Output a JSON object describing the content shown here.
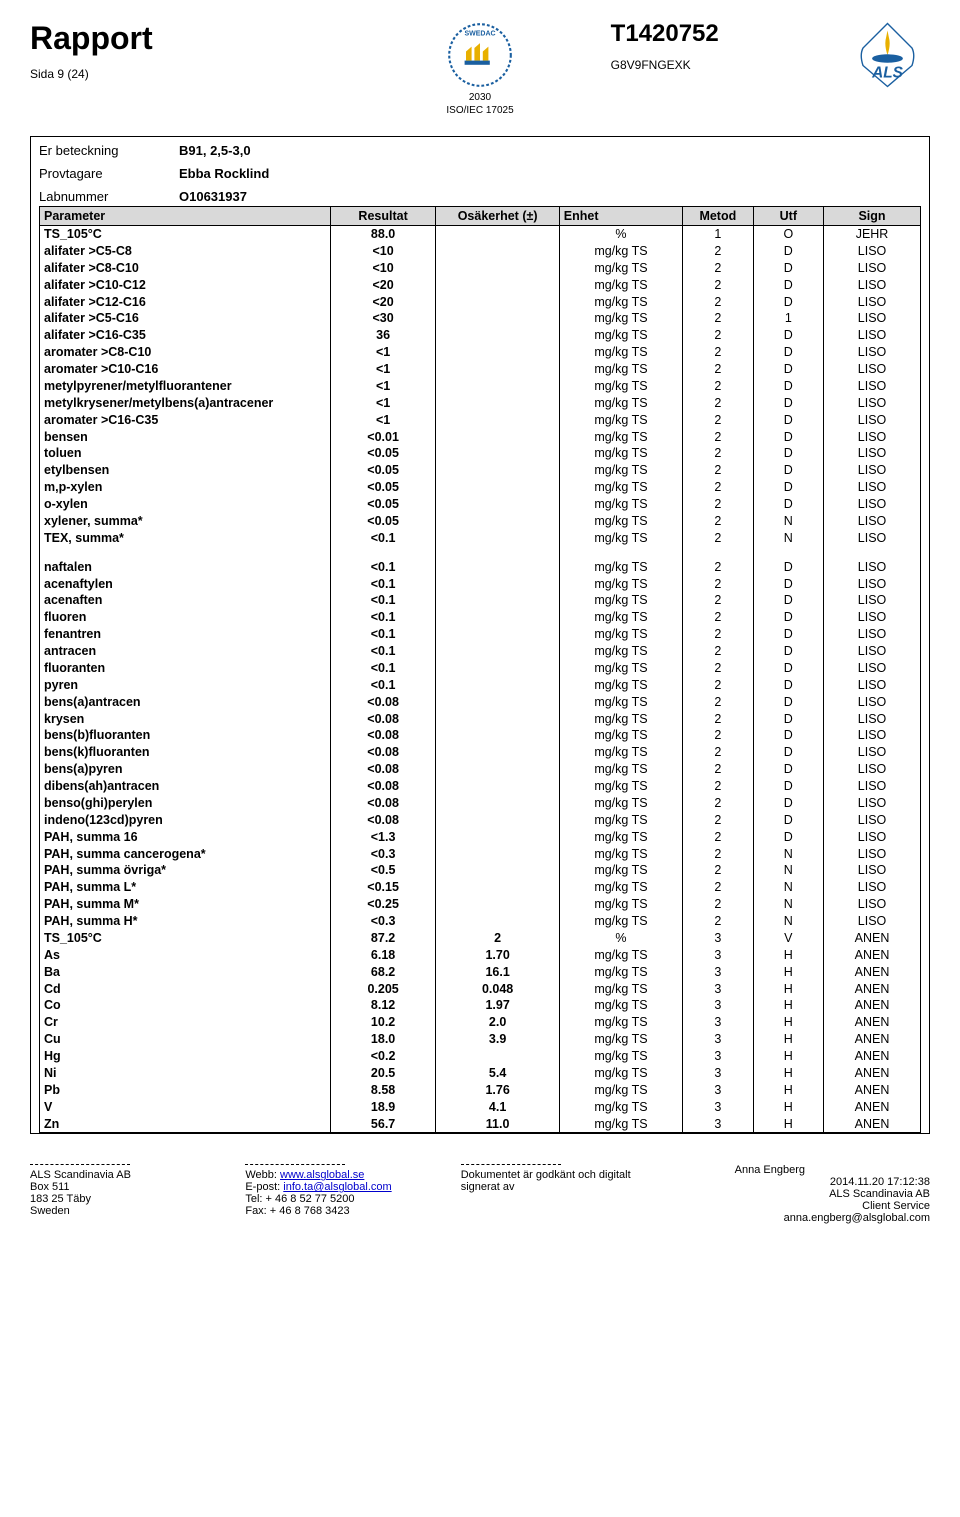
{
  "header": {
    "title": "Rapport",
    "page": "Sida 9 (24)",
    "report_no": "T1420752",
    "sub_no": "G8V9FNGEXK",
    "iso_line1": "2030",
    "iso_line2": "ISO/IEC 17025"
  },
  "meta": {
    "er_label": "Er beteckning",
    "er_value": "B91, 2,5-3,0",
    "prov_label": "Provtagare",
    "prov_value": "Ebba Rocklind",
    "lab_label": "Labnummer",
    "lab_value": "O10631937"
  },
  "columns": [
    "Parameter",
    "Resultat",
    "Osäkerhet (±)",
    "Enhet",
    "Metod",
    "Utf",
    "Sign"
  ],
  "rows": [
    [
      "TS_105°C",
      "88.0",
      "",
      "%",
      "1",
      "O",
      "JEHR"
    ],
    [
      "alifater >C5-C8",
      "<10",
      "",
      "mg/kg TS",
      "2",
      "D",
      "LISO"
    ],
    [
      "alifater >C8-C10",
      "<10",
      "",
      "mg/kg TS",
      "2",
      "D",
      "LISO"
    ],
    [
      "alifater >C10-C12",
      "<20",
      "",
      "mg/kg TS",
      "2",
      "D",
      "LISO"
    ],
    [
      "alifater >C12-C16",
      "<20",
      "",
      "mg/kg TS",
      "2",
      "D",
      "LISO"
    ],
    [
      "alifater >C5-C16",
      "<30",
      "",
      "mg/kg TS",
      "2",
      "1",
      "LISO"
    ],
    [
      "alifater >C16-C35",
      "36",
      "",
      "mg/kg TS",
      "2",
      "D",
      "LISO"
    ],
    [
      "aromater >C8-C10",
      "<1",
      "",
      "mg/kg TS",
      "2",
      "D",
      "LISO"
    ],
    [
      "aromater >C10-C16",
      "<1",
      "",
      "mg/kg TS",
      "2",
      "D",
      "LISO"
    ],
    [
      "metylpyrener/metylfluorantener",
      "<1",
      "",
      "mg/kg TS",
      "2",
      "D",
      "LISO"
    ],
    [
      "metylkrysener/metylbens(a)antracener",
      "<1",
      "",
      "mg/kg TS",
      "2",
      "D",
      "LISO"
    ],
    [
      "aromater >C16-C35",
      "<1",
      "",
      "mg/kg TS",
      "2",
      "D",
      "LISO"
    ],
    [
      "bensen",
      "<0.01",
      "",
      "mg/kg TS",
      "2",
      "D",
      "LISO"
    ],
    [
      "toluen",
      "<0.05",
      "",
      "mg/kg TS",
      "2",
      "D",
      "LISO"
    ],
    [
      "etylbensen",
      "<0.05",
      "",
      "mg/kg TS",
      "2",
      "D",
      "LISO"
    ],
    [
      "m,p-xylen",
      "<0.05",
      "",
      "mg/kg TS",
      "2",
      "D",
      "LISO"
    ],
    [
      "o-xylen",
      "<0.05",
      "",
      "mg/kg TS",
      "2",
      "D",
      "LISO"
    ],
    [
      "xylener, summa*",
      "<0.05",
      "",
      "mg/kg TS",
      "2",
      "N",
      "LISO"
    ],
    [
      "TEX, summa*",
      "<0.1",
      "",
      "mg/kg TS",
      "2",
      "N",
      "LISO"
    ],
    "SPACER",
    [
      "naftalen",
      "<0.1",
      "",
      "mg/kg TS",
      "2",
      "D",
      "LISO"
    ],
    [
      "acenaftylen",
      "<0.1",
      "",
      "mg/kg TS",
      "2",
      "D",
      "LISO"
    ],
    [
      "acenaften",
      "<0.1",
      "",
      "mg/kg TS",
      "2",
      "D",
      "LISO"
    ],
    [
      "fluoren",
      "<0.1",
      "",
      "mg/kg TS",
      "2",
      "D",
      "LISO"
    ],
    [
      "fenantren",
      "<0.1",
      "",
      "mg/kg TS",
      "2",
      "D",
      "LISO"
    ],
    [
      "antracen",
      "<0.1",
      "",
      "mg/kg TS",
      "2",
      "D",
      "LISO"
    ],
    [
      "fluoranten",
      "<0.1",
      "",
      "mg/kg TS",
      "2",
      "D",
      "LISO"
    ],
    [
      "pyren",
      "<0.1",
      "",
      "mg/kg TS",
      "2",
      "D",
      "LISO"
    ],
    [
      "bens(a)antracen",
      "<0.08",
      "",
      "mg/kg TS",
      "2",
      "D",
      "LISO"
    ],
    [
      "krysen",
      "<0.08",
      "",
      "mg/kg TS",
      "2",
      "D",
      "LISO"
    ],
    [
      "bens(b)fluoranten",
      "<0.08",
      "",
      "mg/kg TS",
      "2",
      "D",
      "LISO"
    ],
    [
      "bens(k)fluoranten",
      "<0.08",
      "",
      "mg/kg TS",
      "2",
      "D",
      "LISO"
    ],
    [
      "bens(a)pyren",
      "<0.08",
      "",
      "mg/kg TS",
      "2",
      "D",
      "LISO"
    ],
    [
      "dibens(ah)antracen",
      "<0.08",
      "",
      "mg/kg TS",
      "2",
      "D",
      "LISO"
    ],
    [
      "benso(ghi)perylen",
      "<0.08",
      "",
      "mg/kg TS",
      "2",
      "D",
      "LISO"
    ],
    [
      "indeno(123cd)pyren",
      "<0.08",
      "",
      "mg/kg TS",
      "2",
      "D",
      "LISO"
    ],
    [
      "PAH, summa 16",
      "<1.3",
      "",
      "mg/kg TS",
      "2",
      "D",
      "LISO"
    ],
    [
      "PAH, summa cancerogena*",
      "<0.3",
      "",
      "mg/kg TS",
      "2",
      "N",
      "LISO"
    ],
    [
      "PAH, summa övriga*",
      "<0.5",
      "",
      "mg/kg TS",
      "2",
      "N",
      "LISO"
    ],
    [
      "PAH, summa L*",
      "<0.15",
      "",
      "mg/kg TS",
      "2",
      "N",
      "LISO"
    ],
    [
      "PAH, summa M*",
      "<0.25",
      "",
      "mg/kg TS",
      "2",
      "N",
      "LISO"
    ],
    [
      "PAH, summa H*",
      "<0.3",
      "",
      "mg/kg TS",
      "2",
      "N",
      "LISO"
    ],
    [
      "TS_105°C",
      "87.2",
      "2",
      "%",
      "3",
      "V",
      "ANEN"
    ],
    [
      "As",
      "6.18",
      "1.70",
      "mg/kg TS",
      "3",
      "H",
      "ANEN"
    ],
    [
      "Ba",
      "68.2",
      "16.1",
      "mg/kg TS",
      "3",
      "H",
      "ANEN"
    ],
    [
      "Cd",
      "0.205",
      "0.048",
      "mg/kg TS",
      "3",
      "H",
      "ANEN"
    ],
    [
      "Co",
      "8.12",
      "1.97",
      "mg/kg TS",
      "3",
      "H",
      "ANEN"
    ],
    [
      "Cr",
      "10.2",
      "2.0",
      "mg/kg TS",
      "3",
      "H",
      "ANEN"
    ],
    [
      "Cu",
      "18.0",
      "3.9",
      "mg/kg TS",
      "3",
      "H",
      "ANEN"
    ],
    [
      "Hg",
      "<0.2",
      "",
      "mg/kg TS",
      "3",
      "H",
      "ANEN"
    ],
    [
      "Ni",
      "20.5",
      "5.4",
      "mg/kg TS",
      "3",
      "H",
      "ANEN"
    ],
    [
      "Pb",
      "8.58",
      "1.76",
      "mg/kg TS",
      "3",
      "H",
      "ANEN"
    ],
    [
      "V",
      "18.9",
      "4.1",
      "mg/kg TS",
      "3",
      "H",
      "ANEN"
    ],
    [
      "Zn",
      "56.7",
      "11.0",
      "mg/kg TS",
      "3",
      "H",
      "ANEN"
    ]
  ],
  "footer": {
    "col1": [
      "ALS Scandinavia AB",
      "Box 511",
      "183 25 Täby",
      "Sweden"
    ],
    "col2_label": "Webb:",
    "col2_link1": "www.alsglobal.se",
    "col2_epost_label": "E-post:",
    "col2_link2": "info.ta@alsglobal.com",
    "col2_tel": "Tel: + 46 8 52 77 5200",
    "col2_fax": "Fax: + 46 8 768 3423",
    "col3_line1": "Dokumentet är godkänt och digitalt",
    "col3_line2": "signerat av",
    "col4_name": "Anna Engberg",
    "col4_ts": "2014.11.20 17:12:38",
    "col4_company": "ALS Scandinavia AB",
    "col4_dept": "Client Service",
    "col4_email": "anna.engberg@alsglobal.com"
  }
}
